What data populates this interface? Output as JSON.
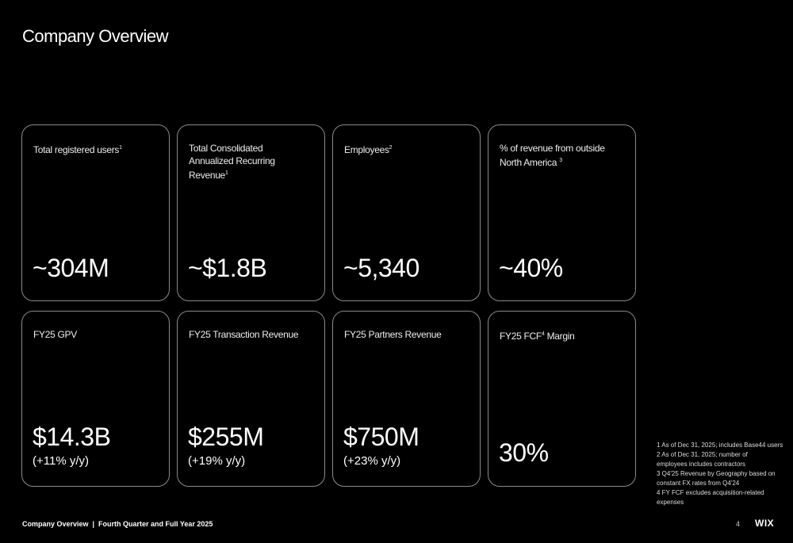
{
  "title": "Company Overview",
  "cards": [
    {
      "label": "Total registered users",
      "sup": "1",
      "value": "~304M"
    },
    {
      "label": "Total Consolidated Annualized Recurring Revenue",
      "sup": "1",
      "value": "~$1.8B"
    },
    {
      "label": "Employees",
      "sup": "2",
      "value": "~5,340"
    },
    {
      "label": "% of revenue from outside North America",
      "sup": "3",
      "value": "~40%"
    },
    {
      "label": "FY25 GPV",
      "sup": "",
      "value": "$14.3B",
      "sub": "(+11% y/y)"
    },
    {
      "label": "FY25 Transaction Revenue",
      "sup": "",
      "value": "$255M",
      "sub": "(+19% y/y)"
    },
    {
      "label": "FY25 Partners Revenue",
      "sup": "",
      "value": "$750M",
      "sub": "(+23% y/y)"
    },
    {
      "label_pre": "FY25 FCF",
      "sup": "4",
      "label_post": " Margin",
      "value": "30%"
    }
  ],
  "footnotes": [
    "1 As of Dec 31, 2025; includes Base44 users",
    "2 As of Dec 31, 2025; number of employees includes contractors",
    "3 Q4'25 Revenue by Geography based on constant FX rates from Q4'24",
    "4 FY FCF excludes acquisition-related expenses"
  ],
  "footer": "Company Overview  |  Fourth Quarter and Full Year 2025",
  "page_number": "4",
  "logo": "WIX"
}
